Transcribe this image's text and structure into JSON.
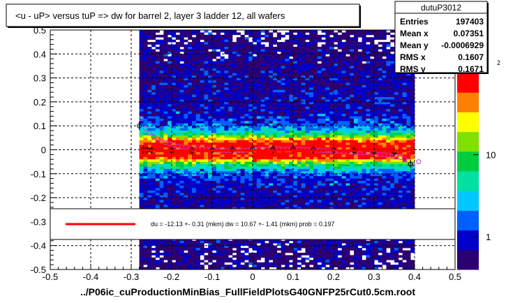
{
  "title": "<u - uP>       versus  tuP =>  dw for barrel 2, layer 3 ladder 12, all wafers",
  "footer": "../P06ic_cuProductionMinBias_FullFieldPlotsG40GNFP25rCut0.5cm.root",
  "stats": {
    "name": "dutuP3012",
    "rows": [
      {
        "label": "Entries",
        "value": "197403"
      },
      {
        "label": "Mean x",
        "value": "0.07351"
      },
      {
        "label": "Mean y",
        "value": "-0.0006929"
      },
      {
        "label": "RMS x",
        "value": "0.1607"
      },
      {
        "label": "RMS y",
        "value": "0.1671"
      }
    ]
  },
  "fit_legend": "du =  -12.13 +-  0.31 (mkm) dw =   10.67 +-  1.41 (mkm) prob = 0.197",
  "colors": {
    "fit_line": "#ff0000",
    "profile_markers": "#cc33cc",
    "mean_markers": "#000000",
    "frame": "#000000"
  },
  "chart_data": {
    "type": "heatmap",
    "xlim": [
      -0.5,
      0.5
    ],
    "ylim": [
      -0.5,
      0.5
    ],
    "x_ticks": [
      "-0.5",
      "-0.4",
      "-0.3",
      "-0.2",
      "-0.1",
      "0",
      "0.1",
      "0.2",
      "0.3",
      "0.4",
      "0.5"
    ],
    "y_ticks": [
      "-0.5",
      "-0.4",
      "-0.3",
      "-0.2",
      "-0.1",
      "0",
      "0.1",
      "0.2",
      "0.3",
      "0.4",
      "0.5"
    ],
    "x_tick_values": [
      -0.5,
      -0.4,
      -0.3,
      -0.2,
      -0.1,
      0,
      0.1,
      0.2,
      0.3,
      0.4,
      0.5
    ],
    "y_tick_values": [
      -0.5,
      -0.4,
      -0.3,
      -0.2,
      -0.1,
      0,
      0.1,
      0.2,
      0.3,
      0.4,
      0.5
    ],
    "populated_x_range": [
      -0.28,
      0.4
    ],
    "color_scale": {
      "type": "log",
      "labels": [
        "1",
        "10"
      ],
      "label_values": [
        1,
        10
      ],
      "exponent_label": "2",
      "colors": [
        "#2c0070",
        "#0000c8",
        "#0060ff",
        "#00c8ff",
        "#00e0a0",
        "#00cc40",
        "#80e000",
        "#ffff00",
        "#ff8000",
        "#ff0000"
      ]
    },
    "grid": true,
    "fit_line": {
      "x": [
        -0.28,
        0.4
      ],
      "y": [
        -0.003,
        -0.004
      ]
    },
    "profile": {
      "x": [
        -0.275,
        -0.265,
        -0.255,
        -0.245,
        -0.235,
        -0.225,
        -0.215,
        -0.205,
        -0.195,
        -0.185,
        -0.175,
        -0.165,
        -0.155,
        -0.145,
        -0.135,
        -0.125,
        -0.115,
        -0.105,
        -0.095,
        -0.085,
        -0.075,
        -0.065,
        -0.055,
        -0.045,
        -0.035,
        -0.025,
        -0.015,
        -0.005,
        0.005,
        0.015,
        0.025,
        0.035,
        0.045,
        0.055,
        0.065,
        0.075,
        0.085,
        0.095,
        0.105,
        0.115,
        0.125,
        0.135,
        0.145,
        0.155,
        0.165,
        0.175,
        0.185,
        0.195,
        0.205,
        0.215,
        0.225,
        0.235,
        0.245,
        0.255,
        0.265,
        0.275,
        0.285,
        0.295,
        0.305,
        0.315,
        0.325,
        0.335,
        0.345,
        0.355,
        0.365,
        0.375,
        0.385,
        0.395,
        0.41
      ],
      "y": [
        0.13,
        0.09,
        0.07,
        0.055,
        0.045,
        0.035,
        0.03,
        0.025,
        0.02,
        0.015,
        0.012,
        0.01,
        0.008,
        0.006,
        0.005,
        0.004,
        0.002,
        0.001,
        0.0,
        -0.002,
        -0.003,
        -0.004,
        -0.003,
        -0.002,
        -0.004,
        -0.003,
        -0.002,
        0.0,
        0.002,
        0.003,
        0.004,
        0.003,
        0.002,
        0.004,
        0.005,
        0.004,
        0.003,
        0.005,
        0.004,
        0.003,
        0.002,
        0.001,
        0.0,
        -0.002,
        -0.003,
        -0.004,
        -0.005,
        -0.006,
        -0.006,
        -0.007,
        -0.008,
        -0.009,
        -0.01,
        -0.012,
        -0.013,
        -0.014,
        -0.012,
        -0.015,
        -0.018,
        -0.02,
        -0.02,
        -0.022,
        -0.025,
        -0.028,
        -0.032,
        -0.038,
        -0.045,
        -0.06,
        -0.05
      ]
    },
    "means": {
      "x": [
        -0.28,
        -0.27,
        -0.26,
        -0.25,
        -0.2,
        -0.15,
        -0.1,
        -0.05,
        0.0,
        0.05,
        0.1,
        0.15,
        0.2,
        0.25,
        0.3,
        0.35,
        0.39
      ],
      "y": [
        0.1,
        0.0,
        0.0,
        -0.002,
        -0.003,
        -0.004,
        -0.002,
        0.0,
        0.002,
        0.003,
        0.004,
        0.001,
        -0.002,
        -0.004,
        -0.006,
        -0.008,
        -0.06
      ]
    }
  }
}
